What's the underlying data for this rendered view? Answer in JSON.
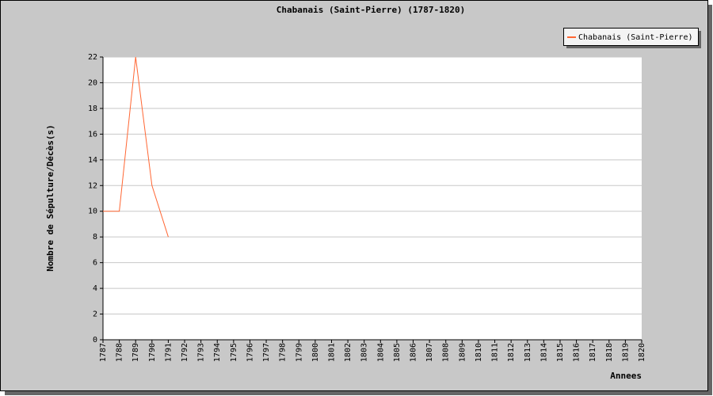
{
  "chart_data": {
    "type": "line",
    "title": "Chabanais (Saint-Pierre) (1787-1820)",
    "x_label": "Annees",
    "y_label": "Nombre de Sépulture/Décès(s)",
    "categories": [
      "1787",
      "1788",
      "1789",
      "1790",
      "1791",
      "1792",
      "1793",
      "1794",
      "1795",
      "1796",
      "1797",
      "1798",
      "1799",
      "1800",
      "1801",
      "1802",
      "1803",
      "1804",
      "1805",
      "1806",
      "1807",
      "1808",
      "1809",
      "1810",
      "1811",
      "1812",
      "1813",
      "1814",
      "1815",
      "1816",
      "1817",
      "1818",
      "1819",
      "1820"
    ],
    "series": [
      {
        "name": "Chabanais (Saint-Pierre)",
        "color": "#ff6633",
        "values": [
          10,
          10,
          22,
          12,
          8,
          null,
          null,
          null,
          null,
          null,
          null,
          null,
          null,
          null,
          null,
          null,
          null,
          null,
          null,
          null,
          null,
          null,
          null,
          null,
          null,
          null,
          null,
          null,
          null,
          null,
          null,
          null,
          null,
          null
        ]
      }
    ],
    "ylim": [
      0,
      22
    ],
    "yticks": [
      0,
      2,
      4,
      6,
      8,
      10,
      12,
      14,
      16,
      18,
      20,
      22
    ],
    "grid": true,
    "legend": "top-right"
  }
}
